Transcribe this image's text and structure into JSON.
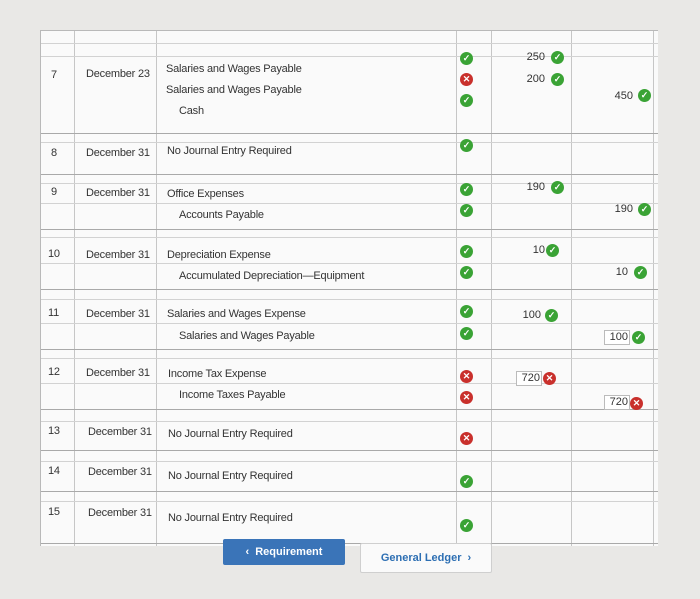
{
  "rows": [
    {
      "no": "7",
      "date": "December 23",
      "accounts": [
        "Salaries and Wages Payable",
        "Salaries and Wages Payable",
        "Cash"
      ]
    },
    {
      "no": "8",
      "date": "December 31",
      "accounts": [
        "No Journal Entry Required"
      ]
    },
    {
      "no": "9",
      "date": "December 31",
      "accounts": [
        "Office Expenses",
        "Accounts Payable"
      ]
    },
    {
      "no": "10",
      "date": "December 31",
      "accounts": [
        "Depreciation Expense",
        "Accumulated Depreciation—Equipment"
      ]
    },
    {
      "no": "11",
      "date": "December 31",
      "accounts": [
        "Salaries and Wages Expense",
        "Salaries and Wages Payable"
      ]
    },
    {
      "no": "12",
      "date": "December 31",
      "accounts": [
        "Income Tax Expense",
        "Income Taxes Payable"
      ]
    },
    {
      "no": "13",
      "date": "December 31",
      "accounts": [
        "No Journal Entry Required"
      ]
    },
    {
      "no": "14",
      "date": "December 31",
      "accounts": [
        "No Journal Entry Required"
      ]
    },
    {
      "no": "15",
      "date": "December 31",
      "accounts": [
        "No Journal Entry Required"
      ]
    }
  ],
  "amounts": {
    "r7_debit_1": "250",
    "r7_debit_2": "200",
    "r7_credit": "450",
    "r9_debit": "190",
    "r9_credit": "190",
    "r10_debit": "10",
    "r10_credit": "10",
    "r11_debit": "100",
    "r11_credit": "100",
    "r12_debit": "720",
    "r12_credit": "720"
  },
  "buttons": {
    "requirement": "Requirement",
    "general_ledger": "General Ledger"
  },
  "icons": {
    "correct": "check-icon",
    "incorrect": "x-icon"
  },
  "colors": {
    "correct": "#3aa335",
    "incorrect": "#c9302c",
    "button": "#3a74b8"
  }
}
